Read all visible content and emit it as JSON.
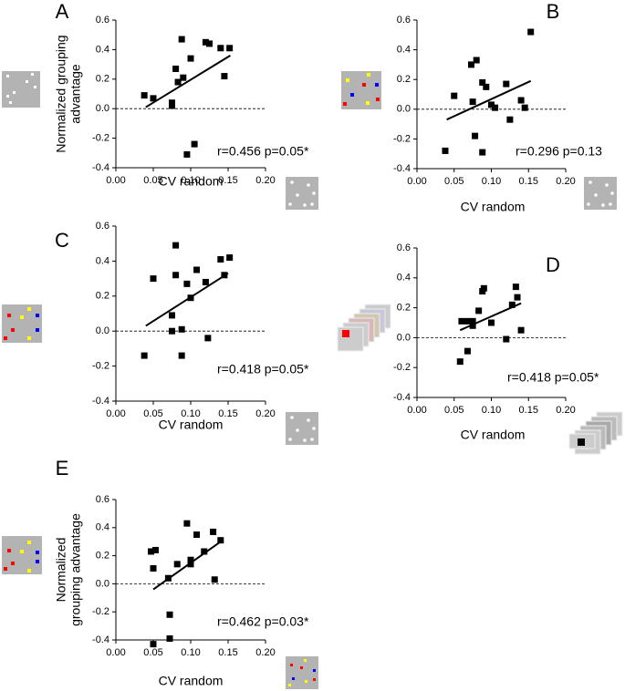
{
  "chart_data": [
    {
      "type": "scatter",
      "panel": "A",
      "ylabel": [
        "Normalized grouping",
        "advantage"
      ],
      "xlabel": "CV random",
      "annotation": "r=0.456 p=0.05*",
      "x": [
        0.038,
        0.05,
        0.075,
        0.075,
        0.08,
        0.083,
        0.088,
        0.09,
        0.1,
        0.12,
        0.125,
        0.14,
        0.145,
        0.152,
        0.095,
        0.105
      ],
      "y": [
        0.09,
        0.07,
        0.04,
        0.02,
        0.27,
        0.18,
        0.47,
        0.21,
        0.34,
        0.45,
        0.44,
        0.41,
        0.22,
        0.41,
        -0.31,
        -0.24
      ],
      "fit": {
        "x": [
          0.04,
          0.153
        ],
        "y": [
          0.01,
          0.36
        ]
      },
      "hline": 0,
      "color": "#000000",
      "xlim": [
        0,
        0.2
      ],
      "ylim": [
        -0.4,
        0.6
      ],
      "xticks": [
        {
          "value": 0,
          "label": "0.00"
        },
        0.05,
        {
          "value": 0.1,
          "label": "0.10"
        },
        0.15,
        {
          "value": 0.2,
          "label": "0.20"
        }
      ],
      "yticks": [
        -0.4,
        -0.2,
        {
          "value": 0,
          "label": "0.0"
        },
        0.2,
        0.4,
        0.6
      ]
    },
    {
      "type": "scatter",
      "panel": "B",
      "xlabel": "CV random",
      "annotation": "r=0.296 p=0.13",
      "x": [
        0.038,
        0.05,
        0.073,
        0.075,
        0.08,
        0.078,
        0.088,
        0.088,
        0.093,
        0.1,
        0.105,
        0.12,
        0.125,
        0.14,
        0.145,
        0.153
      ],
      "y": [
        -0.28,
        0.09,
        0.3,
        0.05,
        0.33,
        -0.18,
        -0.29,
        0.18,
        0.15,
        0.03,
        0.01,
        0.17,
        -0.07,
        0.06,
        0.01,
        0.52
      ],
      "fit": {
        "x": [
          0.04,
          0.153
        ],
        "y": [
          -0.07,
          0.19
        ]
      },
      "hline": 0,
      "color": "#000000",
      "xlim": [
        0,
        0.2
      ],
      "ylim": [
        -0.4,
        0.6
      ],
      "xticks": [
        {
          "value": 0,
          "label": "0.00"
        },
        0.05,
        {
          "value": 0.1,
          "label": "0.10"
        },
        0.15,
        {
          "value": 0.2,
          "label": "0.20"
        }
      ],
      "yticks": [
        -0.4,
        -0.2,
        {
          "value": 0,
          "label": "0.0"
        },
        0.2,
        0.4,
        0.6
      ]
    },
    {
      "type": "scatter",
      "panel": "C",
      "xlabel": "CV random",
      "annotation": "r=0.418 p=0.05*",
      "x": [
        0.038,
        0.05,
        0.075,
        0.075,
        0.08,
        0.08,
        0.088,
        0.088,
        0.095,
        0.1,
        0.108,
        0.12,
        0.123,
        0.14,
        0.145,
        0.152
      ],
      "y": [
        -0.14,
        0.3,
        0.09,
        0.0,
        0.49,
        0.32,
        -0.14,
        0.01,
        0.27,
        0.19,
        0.35,
        0.28,
        -0.04,
        0.41,
        0.32,
        0.42
      ],
      "fit": {
        "x": [
          0.04,
          0.15
        ],
        "y": [
          0.03,
          0.33
        ]
      },
      "hline": 0,
      "color": "#000000",
      "xlim": [
        0,
        0.2
      ],
      "ylim": [
        -0.4,
        0.6
      ],
      "xticks": [
        {
          "value": 0,
          "label": "0.00"
        },
        0.05,
        {
          "value": 0.1,
          "label": "0.10"
        },
        0.15,
        {
          "value": 0.2,
          "label": "0.20"
        }
      ],
      "yticks": [
        -0.4,
        -0.2,
        {
          "value": 0,
          "label": "0.0"
        },
        0.2,
        0.4,
        0.6
      ]
    },
    {
      "type": "scatter",
      "panel": "D",
      "xlabel": "CV random",
      "annotation": "r=0.418 p=0.05*",
      "x": [
        0.058,
        0.06,
        0.068,
        0.068,
        0.075,
        0.075,
        0.083,
        0.088,
        0.09,
        0.1,
        0.12,
        0.128,
        0.133,
        0.135,
        0.14
      ],
      "y": [
        -0.16,
        0.11,
        0.11,
        -0.09,
        0.11,
        0.08,
        0.18,
        0.31,
        0.33,
        0.1,
        -0.01,
        0.22,
        0.34,
        0.27,
        0.05
      ],
      "fit": {
        "x": [
          0.058,
          0.14
        ],
        "y": [
          0.05,
          0.23
        ]
      },
      "hline": 0,
      "color": "#000000",
      "xlim": [
        0,
        0.2
      ],
      "ylim": [
        -0.4,
        0.6
      ],
      "xticks": [
        {
          "value": 0,
          "label": "0.00"
        },
        0.05,
        {
          "value": 0.1,
          "label": "0.10"
        },
        0.15,
        {
          "value": 0.2,
          "label": "0.20"
        }
      ],
      "yticks": [
        -0.4,
        -0.2,
        {
          "value": 0,
          "label": "0.0"
        },
        0.2,
        0.4,
        0.6
      ]
    },
    {
      "type": "scatter",
      "panel": "E",
      "ylabel": [
        "Normalized",
        "grouping advantage"
      ],
      "xlabel": "CV random",
      "annotation": "r=0.462 p=0.03*",
      "x": [
        0.047,
        0.05,
        0.053,
        0.05,
        0.07,
        0.072,
        0.072,
        0.082,
        0.095,
        0.1,
        0.1,
        0.108,
        0.118,
        0.13,
        0.132,
        0.14
      ],
      "y": [
        0.23,
        0.11,
        0.24,
        -0.43,
        0.04,
        -0.22,
        -0.39,
        0.14,
        0.43,
        0.17,
        0.14,
        0.35,
        0.23,
        0.37,
        0.03,
        0.31
      ],
      "fit": {
        "x": [
          0.05,
          0.14
        ],
        "y": [
          -0.04,
          0.3
        ]
      },
      "hline": 0,
      "color": "#000000",
      "xlim": [
        0,
        0.2
      ],
      "ylim": [
        -0.4,
        0.6
      ],
      "xticks": [
        {
          "value": 0,
          "label": "0.00"
        },
        0.05,
        {
          "value": 0.1,
          "label": "0.10"
        },
        0.15,
        {
          "value": 0.2,
          "label": "0.20"
        }
      ],
      "yticks": [
        -0.4,
        -0.2,
        {
          "value": 0,
          "label": "0.0"
        },
        0.2,
        0.4,
        0.6
      ]
    }
  ]
}
